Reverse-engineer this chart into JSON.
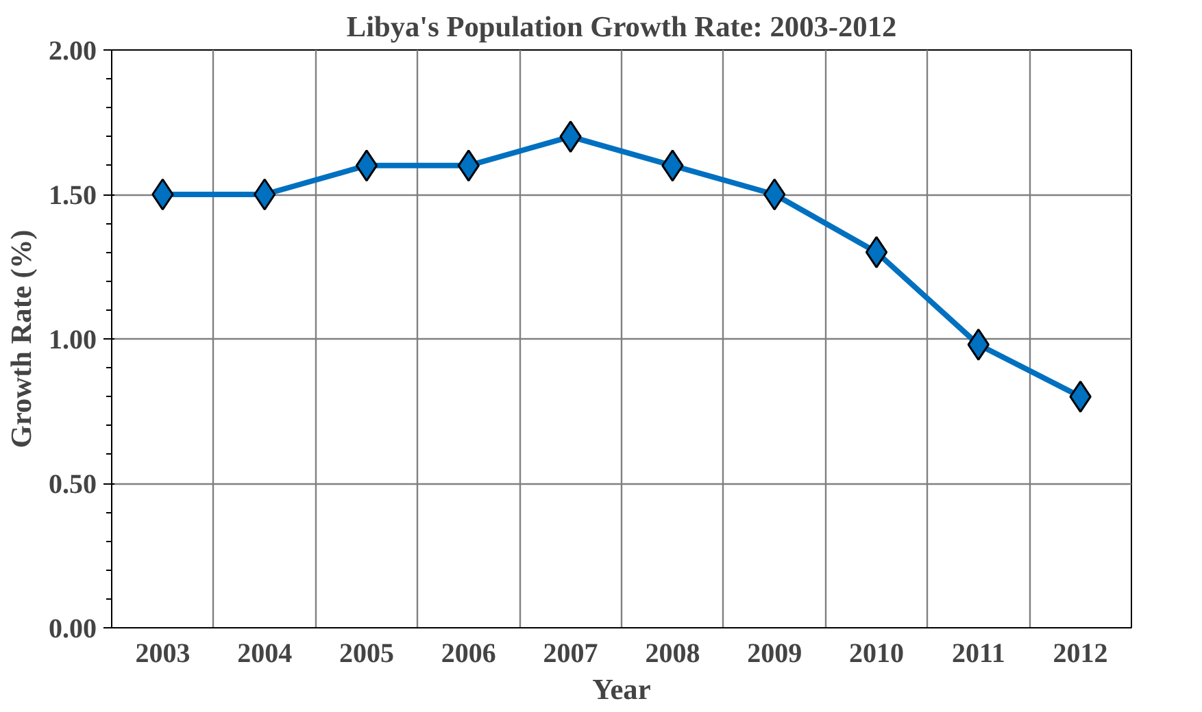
{
  "chart_data": {
    "type": "line",
    "title": "Libya's Population Growth Rate: 2003-2012",
    "xlabel": "Year",
    "ylabel": "Growth Rate (%)",
    "categories": [
      "2003",
      "2004",
      "2005",
      "2006",
      "2007",
      "2008",
      "2009",
      "2010",
      "2011",
      "2012"
    ],
    "series": [
      {
        "color": "#0070c0",
        "values": [
          1.5,
          1.5,
          1.6,
          1.6,
          1.7,
          1.6,
          1.5,
          1.3,
          0.98,
          0.8
        ]
      }
    ],
    "ylim": [
      0,
      2
    ],
    "yticks": [
      {
        "value": 0,
        "label": "0.00"
      },
      {
        "value": 0.5,
        "label": "0.50"
      },
      {
        "value": 1,
        "label": "1.00"
      },
      {
        "value": 1.5,
        "label": "1.50"
      },
      {
        "value": 2,
        "label": "2.00"
      }
    ],
    "grid": true,
    "marker": "diamond",
    "line_style": "solid"
  }
}
